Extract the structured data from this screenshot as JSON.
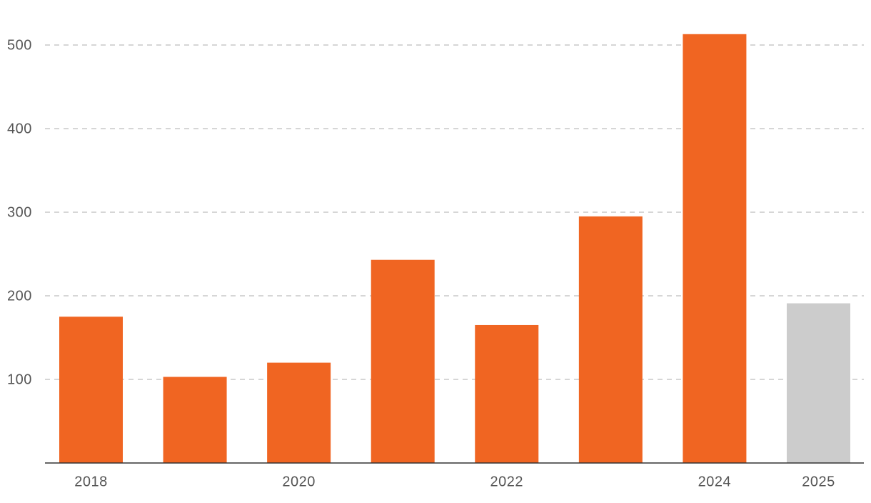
{
  "chart_data": {
    "type": "bar",
    "categories": [
      "2018",
      null,
      "2020",
      null,
      "2022",
      null,
      "2024",
      "2025"
    ],
    "values": [
      175,
      103,
      120,
      243,
      165,
      295,
      513,
      191
    ],
    "colors": [
      "#f06522",
      "#f06522",
      "#f06522",
      "#f06522",
      "#f06522",
      "#f06522",
      "#f06522",
      "#cccccc"
    ],
    "ylim": [
      0,
      550
    ],
    "yticks": [
      100,
      200,
      300,
      400,
      500
    ],
    "grid": true
  }
}
